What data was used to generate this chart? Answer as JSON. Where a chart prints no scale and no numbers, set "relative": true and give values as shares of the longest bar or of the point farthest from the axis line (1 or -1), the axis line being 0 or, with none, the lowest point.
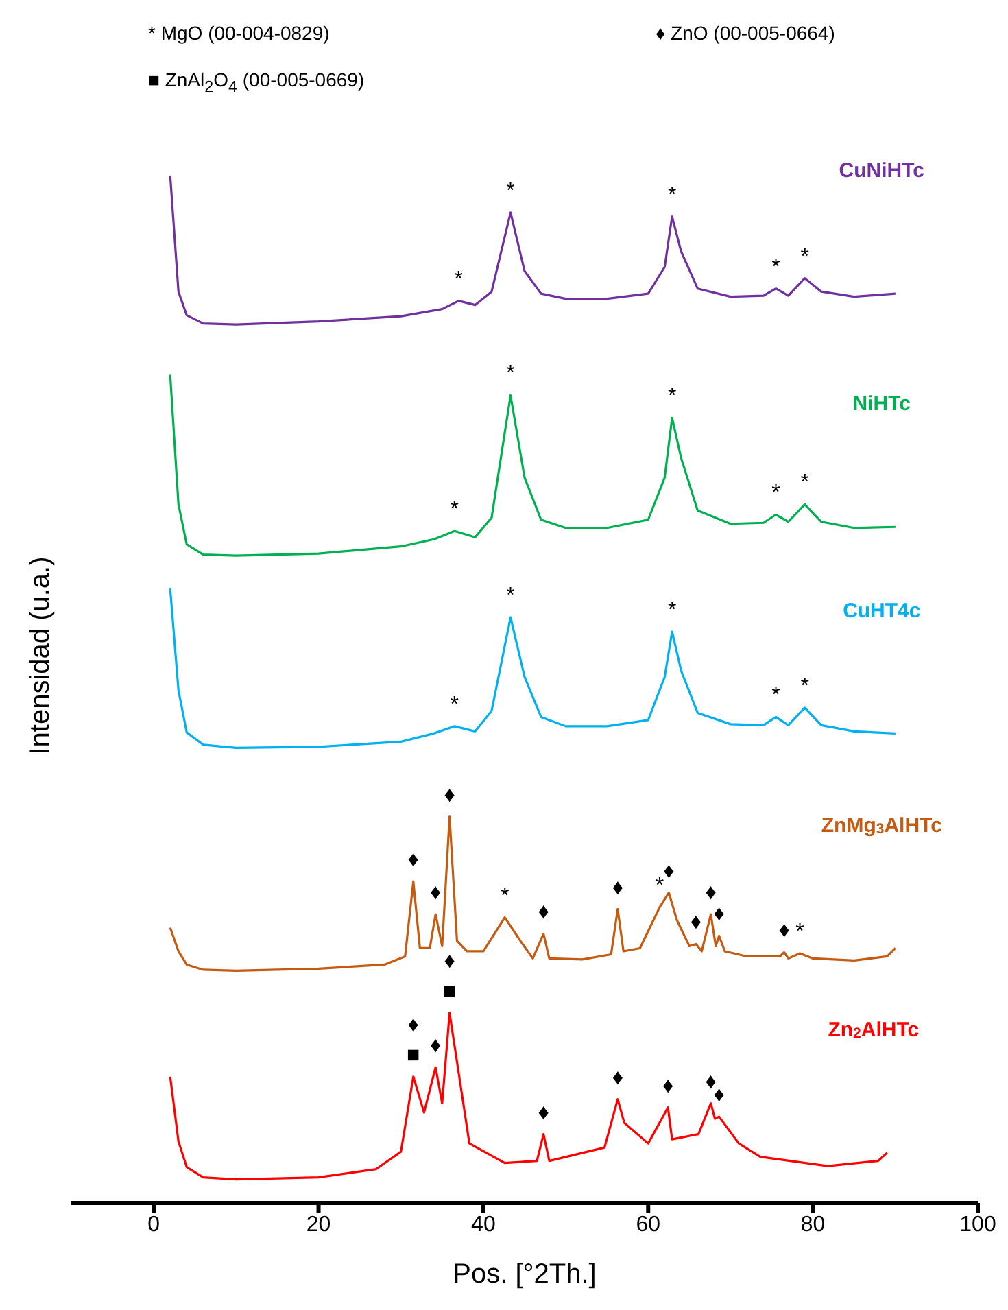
{
  "chart_data": {
    "type": "line",
    "relative": true,
    "xlabel": "Pos. [°2Th.]",
    "ylabel": "Intensidad (u.a.)",
    "xlim": [
      -10,
      100
    ],
    "xticks": [
      0,
      20,
      40,
      60,
      80,
      100
    ],
    "marker": "none",
    "line_style": "solid",
    "series": [
      {
        "name": "CuNiHTc",
        "color": "#7030a0",
        "x": [
          2,
          3,
          4,
          6,
          10,
          20,
          30,
          35,
          37,
          39,
          41,
          43.3,
          45,
          47,
          50,
          55,
          60,
          62,
          62.9,
          64,
          66,
          70,
          74,
          75.5,
          77,
          79,
          81,
          85,
          90
        ],
        "values": [
          1.0,
          0.887,
          0.864,
          0.856,
          0.855,
          0.858,
          0.863,
          0.87,
          0.878,
          0.874,
          0.887,
          0.964,
          0.907,
          0.885,
          0.88,
          0.88,
          0.885,
          0.911,
          0.96,
          0.926,
          0.89,
          0.882,
          0.883,
          0.89,
          0.883,
          0.9,
          0.887,
          0.882,
          0.885
        ]
      },
      {
        "name": "NiHTc",
        "color": "#00b050",
        "x": [
          2,
          3,
          4,
          6,
          10,
          20,
          30,
          34,
          36.5,
          39,
          41,
          43.3,
          45,
          47,
          50,
          55,
          60,
          62,
          62.9,
          64,
          66,
          70,
          74,
          75.5,
          77,
          79,
          81,
          85,
          90
        ],
        "values": [
          0.806,
          0.68,
          0.641,
          0.631,
          0.63,
          0.632,
          0.639,
          0.646,
          0.654,
          0.648,
          0.667,
          0.786,
          0.706,
          0.665,
          0.657,
          0.657,
          0.665,
          0.706,
          0.764,
          0.725,
          0.674,
          0.661,
          0.662,
          0.67,
          0.663,
          0.68,
          0.663,
          0.657,
          0.658
        ]
      },
      {
        "name": "CuHT4c",
        "color": "#00b0f0",
        "x": [
          2,
          3,
          4,
          6,
          10,
          20,
          30,
          34,
          36.5,
          39,
          41,
          43.3,
          45,
          47,
          50,
          55,
          60,
          62,
          62.9,
          64,
          66,
          70,
          74,
          75.5,
          77,
          79,
          81,
          85,
          90
        ],
        "values": [
          0.598,
          0.499,
          0.458,
          0.446,
          0.443,
          0.444,
          0.449,
          0.457,
          0.464,
          0.459,
          0.479,
          0.57,
          0.512,
          0.473,
          0.464,
          0.464,
          0.47,
          0.512,
          0.556,
          0.518,
          0.477,
          0.466,
          0.465,
          0.473,
          0.465,
          0.482,
          0.465,
          0.459,
          0.457
        ]
      },
      {
        "name": "ZnMg$_{3}$AlHTc",
        "color": "#c55a11",
        "x": [
          2,
          3,
          4,
          6,
          10,
          20,
          28,
          30.5,
          31.5,
          32.3,
          33.5,
          34.2,
          35,
          35.9,
          36.8,
          38,
          40,
          42.6,
          44.5,
          46,
          47.3,
          48,
          52,
          55.5,
          56.3,
          57,
          59,
          61.4,
          62.5,
          63.5,
          65,
          65.8,
          66.5,
          67.6,
          68.2,
          68.6,
          69.3,
          72,
          76,
          76.5,
          77,
          78.4,
          80,
          85,
          89,
          90
        ],
        "values": [
          0.268,
          0.245,
          0.232,
          0.227,
          0.226,
          0.228,
          0.232,
          0.24,
          0.313,
          0.248,
          0.248,
          0.281,
          0.25,
          0.376,
          0.255,
          0.245,
          0.245,
          0.278,
          0.255,
          0.238,
          0.262,
          0.238,
          0.237,
          0.242,
          0.286,
          0.245,
          0.248,
          0.288,
          0.302,
          0.275,
          0.25,
          0.252,
          0.245,
          0.281,
          0.25,
          0.26,
          0.245,
          0.24,
          0.24,
          0.244,
          0.238,
          0.243,
          0.238,
          0.236,
          0.24,
          0.248
        ]
      },
      {
        "name": "Zn$_{2}$AlHTc",
        "color": "#ff0000",
        "x": [
          2,
          3,
          4,
          6,
          10,
          20,
          27,
          30,
          31.5,
          32.8,
          34.2,
          35,
          35.9,
          38.3,
          42.6,
          46.5,
          47.3,
          48,
          54.7,
          56.3,
          57.1,
          60,
          62.4,
          62.9,
          66.1,
          67.6,
          68.1,
          68.6,
          71,
          73.6,
          81.8,
          87.9,
          89
        ],
        "values": [
          0.123,
          0.06,
          0.035,
          0.025,
          0.023,
          0.025,
          0.033,
          0.05,
          0.123,
          0.088,
          0.132,
          0.097,
          0.185,
          0.058,
          0.039,
          0.041,
          0.067,
          0.041,
          0.054,
          0.101,
          0.078,
          0.058,
          0.093,
          0.062,
          0.067,
          0.097,
          0.082,
          0.084,
          0.058,
          0.045,
          0.036,
          0.041,
          0.049
        ]
      }
    ],
    "annotations": [
      "* MgO (00-004-0829)",
      "♦ ZnO (00-005-0664)",
      "■ ZnAl$_{2}$O$_{4}$ (00-005-0669)",
      {
        "text": "*",
        "x": 37,
        "y": 0.878
      },
      {
        "text": "*",
        "x": 43.3,
        "y": 0.964
      },
      {
        "text": "*",
        "x": 62.9,
        "y": 0.96
      },
      {
        "text": "*",
        "x": 75.5,
        "y": 0.89
      },
      {
        "text": "*",
        "x": 79,
        "y": 0.9
      },
      {
        "text": "*",
        "x": 36.5,
        "y": 0.654
      },
      {
        "text": "*",
        "x": 43.3,
        "y": 0.786
      },
      {
        "text": "*",
        "x": 62.9,
        "y": 0.764
      },
      {
        "text": "*",
        "x": 75.5,
        "y": 0.67
      },
      {
        "text": "*",
        "x": 79,
        "y": 0.68
      },
      {
        "text": "*",
        "x": 36.5,
        "y": 0.464
      },
      {
        "text": "*",
        "x": 43.3,
        "y": 0.57
      },
      {
        "text": "*",
        "x": 62.9,
        "y": 0.556
      },
      {
        "text": "*",
        "x": 75.5,
        "y": 0.473
      },
      {
        "text": "*",
        "x": 79,
        "y": 0.482
      },
      {
        "text": "♦",
        "x": 31.5,
        "y": 0.313
      },
      {
        "text": "♦",
        "x": 34.2,
        "y": 0.281
      },
      {
        "text": "♦",
        "x": 35.9,
        "y": 0.376
      },
      {
        "text": "*",
        "x": 42.6,
        "y": 0.278
      },
      {
        "text": "♦",
        "x": 47.3,
        "y": 0.262
      },
      {
        "text": "♦",
        "x": 56.3,
        "y": 0.286
      },
      {
        "text": "*",
        "x": 61.4,
        "y": 0.288
      },
      {
        "text": "♦",
        "x": 62.5,
        "y": 0.302
      },
      {
        "text": "♦",
        "x": 65.8,
        "y": 0.252
      },
      {
        "text": "♦",
        "x": 67.6,
        "y": 0.281
      },
      {
        "text": "♦",
        "x": 68.6,
        "y": 0.26
      },
      {
        "text": "♦",
        "x": 76.5,
        "y": 0.244
      },
      {
        "text": "*",
        "x": 78.4,
        "y": 0.243
      },
      {
        "text": "■",
        "x": 31.5,
        "y": 0.123
      },
      {
        "text": "♦",
        "x": 31.5,
        "y": 0.123
      },
      {
        "text": "♦",
        "x": 34.2,
        "y": 0.132
      },
      {
        "text": "■",
        "x": 35.9,
        "y": 0.185
      },
      {
        "text": "♦",
        "x": 35.9,
        "y": 0.185
      },
      {
        "text": "♦",
        "x": 47.3,
        "y": 0.067
      },
      {
        "text": "♦",
        "x": 56.3,
        "y": 0.101
      },
      {
        "text": "♦",
        "x": 62.4,
        "y": 0.093
      },
      {
        "text": "♦",
        "x": 67.6,
        "y": 0.097
      },
      {
        "text": "♦",
        "x": 68.6,
        "y": 0.084
      }
    ]
  }
}
